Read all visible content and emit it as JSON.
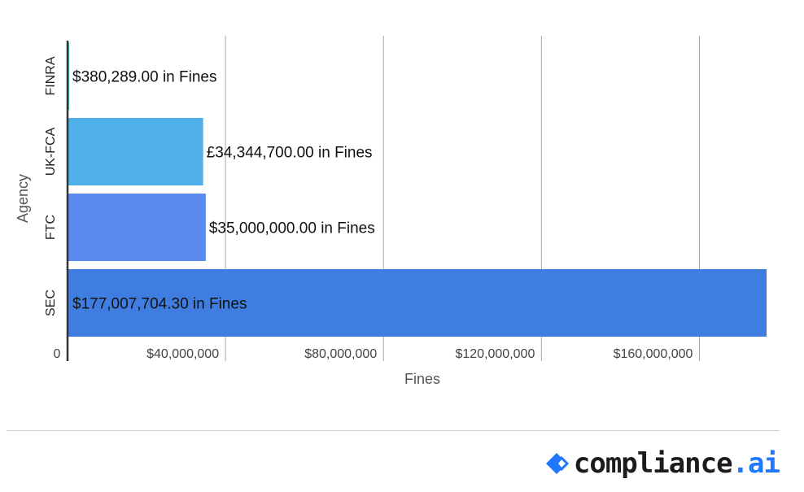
{
  "chart_data": {
    "type": "bar",
    "orientation": "horizontal",
    "categories": [
      "FINRA",
      "UK-FCA",
      "FTC",
      "SEC"
    ],
    "values": [
      380289.0,
      34344700.0,
      35000000.0,
      177007704.3
    ],
    "data_labels": [
      "$380,289.00 in Fines",
      "£34,344,700.00 in Fines",
      "$35,000,000.00 in Fines",
      "$177,007,704.30 in Fines"
    ],
    "colors": [
      "#3ec9b8",
      "#50b0ea",
      "#5b8bef",
      "#3f7ee0"
    ],
    "xlabel": "Fines",
    "ylabel": "Agency",
    "xlim": [
      0,
      177007704.3
    ],
    "xticks": [
      0,
      40000000,
      80000000,
      120000000,
      160000000
    ],
    "xtick_labels": [
      "0",
      "$40,000,000",
      "$80,000,000",
      "$120,000,000",
      "$160,000,000"
    ],
    "grid": "vertical"
  },
  "footer": {
    "brand_name": "compliance",
    "brand_tld": ".ai",
    "brand_color": "#1f78ff"
  }
}
